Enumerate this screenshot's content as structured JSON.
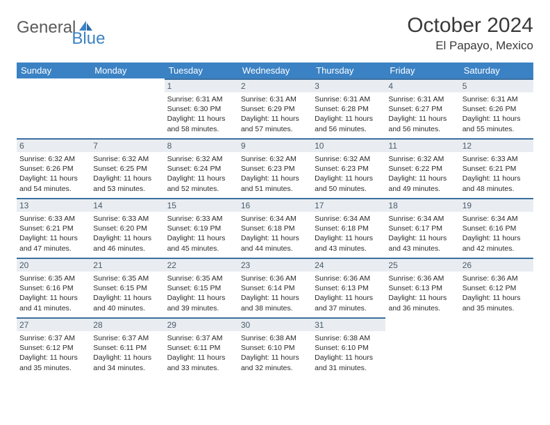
{
  "logo": {
    "text1": "General",
    "text2": "Blue"
  },
  "title": "October 2024",
  "location": "El Papayo, Mexico",
  "colors": {
    "header_bg": "#3b82c4",
    "header_text": "#ffffff",
    "daynum_bg": "#e9edf1",
    "daynum_border": "#3b6fa0",
    "logo_gray": "#5a5a5a",
    "logo_blue": "#3b82c4",
    "body_text": "#2a2a2a"
  },
  "day_headers": [
    "Sunday",
    "Monday",
    "Tuesday",
    "Wednesday",
    "Thursday",
    "Friday",
    "Saturday"
  ],
  "weeks": [
    [
      null,
      null,
      {
        "n": "1",
        "sr": "6:31 AM",
        "ss": "6:30 PM",
        "dh": "11",
        "dm": "58"
      },
      {
        "n": "2",
        "sr": "6:31 AM",
        "ss": "6:29 PM",
        "dh": "11",
        "dm": "57"
      },
      {
        "n": "3",
        "sr": "6:31 AM",
        "ss": "6:28 PM",
        "dh": "11",
        "dm": "56"
      },
      {
        "n": "4",
        "sr": "6:31 AM",
        "ss": "6:27 PM",
        "dh": "11",
        "dm": "56"
      },
      {
        "n": "5",
        "sr": "6:31 AM",
        "ss": "6:26 PM",
        "dh": "11",
        "dm": "55"
      }
    ],
    [
      {
        "n": "6",
        "sr": "6:32 AM",
        "ss": "6:26 PM",
        "dh": "11",
        "dm": "54"
      },
      {
        "n": "7",
        "sr": "6:32 AM",
        "ss": "6:25 PM",
        "dh": "11",
        "dm": "53"
      },
      {
        "n": "8",
        "sr": "6:32 AM",
        "ss": "6:24 PM",
        "dh": "11",
        "dm": "52"
      },
      {
        "n": "9",
        "sr": "6:32 AM",
        "ss": "6:23 PM",
        "dh": "11",
        "dm": "51"
      },
      {
        "n": "10",
        "sr": "6:32 AM",
        "ss": "6:23 PM",
        "dh": "11",
        "dm": "50"
      },
      {
        "n": "11",
        "sr": "6:32 AM",
        "ss": "6:22 PM",
        "dh": "11",
        "dm": "49"
      },
      {
        "n": "12",
        "sr": "6:33 AM",
        "ss": "6:21 PM",
        "dh": "11",
        "dm": "48"
      }
    ],
    [
      {
        "n": "13",
        "sr": "6:33 AM",
        "ss": "6:21 PM",
        "dh": "11",
        "dm": "47"
      },
      {
        "n": "14",
        "sr": "6:33 AM",
        "ss": "6:20 PM",
        "dh": "11",
        "dm": "46"
      },
      {
        "n": "15",
        "sr": "6:33 AM",
        "ss": "6:19 PM",
        "dh": "11",
        "dm": "45"
      },
      {
        "n": "16",
        "sr": "6:34 AM",
        "ss": "6:18 PM",
        "dh": "11",
        "dm": "44"
      },
      {
        "n": "17",
        "sr": "6:34 AM",
        "ss": "6:18 PM",
        "dh": "11",
        "dm": "43"
      },
      {
        "n": "18",
        "sr": "6:34 AM",
        "ss": "6:17 PM",
        "dh": "11",
        "dm": "43"
      },
      {
        "n": "19",
        "sr": "6:34 AM",
        "ss": "6:16 PM",
        "dh": "11",
        "dm": "42"
      }
    ],
    [
      {
        "n": "20",
        "sr": "6:35 AM",
        "ss": "6:16 PM",
        "dh": "11",
        "dm": "41"
      },
      {
        "n": "21",
        "sr": "6:35 AM",
        "ss": "6:15 PM",
        "dh": "11",
        "dm": "40"
      },
      {
        "n": "22",
        "sr": "6:35 AM",
        "ss": "6:15 PM",
        "dh": "11",
        "dm": "39"
      },
      {
        "n": "23",
        "sr": "6:36 AM",
        "ss": "6:14 PM",
        "dh": "11",
        "dm": "38"
      },
      {
        "n": "24",
        "sr": "6:36 AM",
        "ss": "6:13 PM",
        "dh": "11",
        "dm": "37"
      },
      {
        "n": "25",
        "sr": "6:36 AM",
        "ss": "6:13 PM",
        "dh": "11",
        "dm": "36"
      },
      {
        "n": "26",
        "sr": "6:36 AM",
        "ss": "6:12 PM",
        "dh": "11",
        "dm": "35"
      }
    ],
    [
      {
        "n": "27",
        "sr": "6:37 AM",
        "ss": "6:12 PM",
        "dh": "11",
        "dm": "35"
      },
      {
        "n": "28",
        "sr": "6:37 AM",
        "ss": "6:11 PM",
        "dh": "11",
        "dm": "34"
      },
      {
        "n": "29",
        "sr": "6:37 AM",
        "ss": "6:11 PM",
        "dh": "11",
        "dm": "33"
      },
      {
        "n": "30",
        "sr": "6:38 AM",
        "ss": "6:10 PM",
        "dh": "11",
        "dm": "32"
      },
      {
        "n": "31",
        "sr": "6:38 AM",
        "ss": "6:10 PM",
        "dh": "11",
        "dm": "31"
      },
      null,
      null
    ]
  ],
  "labels": {
    "sunrise_prefix": "Sunrise: ",
    "sunset_prefix": "Sunset: ",
    "daylight_prefix": "Daylight: ",
    "hours_word": " hours",
    "and_word": "and ",
    "minutes_word": " minutes."
  }
}
